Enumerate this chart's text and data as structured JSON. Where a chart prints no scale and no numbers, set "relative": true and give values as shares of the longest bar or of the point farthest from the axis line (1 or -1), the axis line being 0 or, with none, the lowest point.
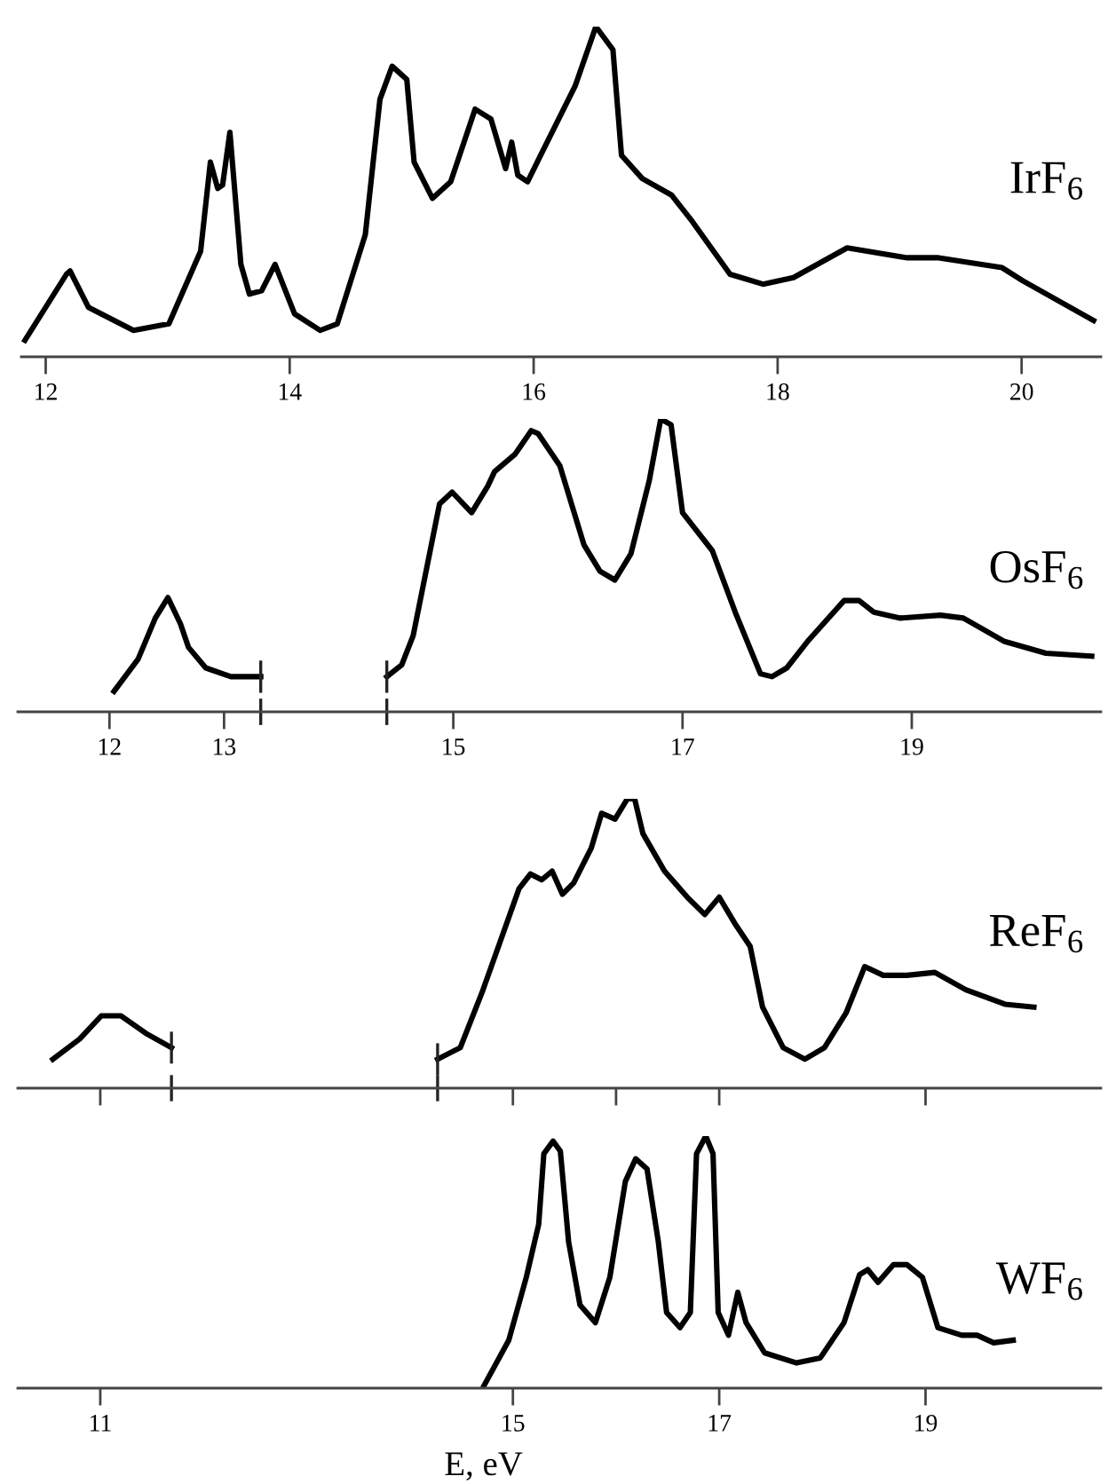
{
  "chart_data": [
    {
      "type": "line",
      "title": "IrF$_{6}$",
      "relative": true,
      "xlim": [
        11.8,
        20.65
      ],
      "xticks": [
        12,
        14,
        16,
        18,
        20
      ],
      "series": [
        {
          "color": "#000000",
          "x": [
            11.83,
            12.17,
            12.2,
            12.35,
            12.72,
            13.01,
            13.27,
            13.35,
            13.41,
            13.45,
            13.51,
            13.6,
            13.67,
            13.77,
            13.88,
            14.04,
            14.25,
            14.39,
            14.62,
            14.74,
            14.84,
            14.96,
            15.02,
            15.17,
            15.32,
            15.52,
            15.65,
            15.77,
            15.82,
            15.87,
            15.95,
            16.07,
            16.34,
            16.51,
            16.65,
            16.72,
            16.89,
            17.13,
            17.3,
            17.61,
            17.88,
            18.13,
            18.57,
            19.06,
            19.32,
            19.84,
            20.01,
            20.59
          ],
          "values": [
            0.05,
            0.25,
            0.26,
            0.15,
            0.08,
            0.1,
            0.32,
            0.59,
            0.51,
            0.52,
            0.68,
            0.28,
            0.19,
            0.2,
            0.28,
            0.13,
            0.08,
            0.1,
            0.37,
            0.78,
            0.88,
            0.84,
            0.59,
            0.48,
            0.53,
            0.75,
            0.72,
            0.57,
            0.65,
            0.55,
            0.53,
            0.62,
            0.82,
            1.0,
            0.93,
            0.61,
            0.54,
            0.49,
            0.41,
            0.25,
            0.22,
            0.24,
            0.33,
            0.3,
            0.3,
            0.27,
            0.23,
            0.11
          ]
        }
      ]
    },
    {
      "type": "line",
      "title": "OsF$_{6}$",
      "relative": true,
      "xlim": [
        11.2,
        20.65
      ],
      "xticks": [
        12,
        13,
        15,
        17,
        19
      ],
      "series": [
        {
          "color": "#000000",
          "x": [
            12.04,
            12.25,
            12.4,
            12.51,
            12.62,
            12.69,
            12.84,
            13.06,
            13.32,
            13.87,
            14.42,
            14.55,
            14.65,
            14.88,
            14.99,
            15.16,
            15.3,
            15.36,
            15.54,
            15.68,
            15.74,
            15.93,
            16.14,
            16.28,
            16.41,
            16.55,
            16.71,
            16.81,
            16.9,
            17.0,
            17.26,
            17.46,
            17.68,
            17.78,
            17.91,
            18.09,
            18.41,
            18.54,
            18.67,
            18.9,
            19.25,
            19.45,
            19.81,
            20.17,
            20.57
          ],
          "values": [
            0.07,
            0.18,
            0.32,
            0.39,
            0.3,
            0.22,
            0.15,
            0.12,
            0.12,
            null,
            0.12,
            0.16,
            0.26,
            0.71,
            0.75,
            0.68,
            0.77,
            0.82,
            0.88,
            0.96,
            0.95,
            0.84,
            0.57,
            0.48,
            0.45,
            0.54,
            0.79,
            1.0,
            0.98,
            0.68,
            0.55,
            0.34,
            0.13,
            0.12,
            0.15,
            0.24,
            0.38,
            0.38,
            0.34,
            0.32,
            0.33,
            0.32,
            0.24,
            0.2,
            0.19
          ]
        }
      ]
    },
    {
      "type": "line",
      "title": "ReF$_{6}$",
      "relative": true,
      "tick_labels": false,
      "xlim": [
        10.2,
        20.7
      ],
      "xticks": [
        11,
        15,
        16,
        17,
        19
      ],
      "series": [
        {
          "color": "#000000",
          "x": [
            10.54,
            10.8,
            11.01,
            11.2,
            11.44,
            11.69,
            12.98,
            14.27,
            14.49,
            14.7,
            14.94,
            15.06,
            15.17,
            15.28,
            15.38,
            15.48,
            15.59,
            15.76,
            15.86,
            15.99,
            16.11,
            16.18,
            16.26,
            16.47,
            16.69,
            16.86,
            17.0,
            17.15,
            17.3,
            17.42,
            17.62,
            17.83,
            18.02,
            18.23,
            18.41,
            18.59,
            18.82,
            19.09,
            19.39,
            19.77,
            20.05
          ],
          "values": [
            0.1,
            0.17,
            0.25,
            0.25,
            0.19,
            0.14,
            null,
            0.1,
            0.14,
            0.33,
            0.57,
            0.69,
            0.74,
            0.72,
            0.75,
            0.67,
            0.71,
            0.83,
            0.95,
            0.93,
            1.0,
            1.0,
            0.88,
            0.75,
            0.66,
            0.6,
            0.66,
            0.57,
            0.49,
            0.28,
            0.14,
            0.1,
            0.14,
            0.26,
            0.42,
            0.39,
            0.39,
            0.4,
            0.34,
            0.29,
            0.28
          ]
        }
      ]
    },
    {
      "type": "line",
      "title": "WF$_{6}$",
      "xlabel": "E, eV",
      "relative": true,
      "xlim": [
        10.2,
        20.7
      ],
      "xticks": [
        11,
        15,
        17,
        19
      ],
      "series": [
        {
          "color": "#000000",
          "x": [
            14.72,
            14.96,
            15.13,
            15.25,
            15.3,
            15.39,
            15.46,
            15.54,
            15.65,
            15.8,
            15.94,
            16.09,
            16.19,
            16.3,
            16.41,
            16.49,
            16.62,
            16.72,
            16.78,
            16.87,
            16.94,
            16.99,
            17.09,
            17.18,
            17.26,
            17.44,
            17.75,
            17.98,
            18.21,
            18.36,
            18.44,
            18.54,
            18.69,
            18.82,
            18.97,
            19.12,
            19.35,
            19.5,
            19.66,
            19.85
          ],
          "values": [
            0.01,
            0.19,
            0.44,
            0.65,
            0.93,
            0.98,
            0.94,
            0.58,
            0.33,
            0.26,
            0.44,
            0.82,
            0.91,
            0.87,
            0.58,
            0.3,
            0.24,
            0.3,
            0.93,
            1.0,
            0.93,
            0.3,
            0.21,
            0.38,
            0.26,
            0.14,
            0.1,
            0.12,
            0.26,
            0.45,
            0.47,
            0.42,
            0.49,
            0.49,
            0.44,
            0.24,
            0.21,
            0.21,
            0.18,
            0.19
          ]
        }
      ]
    }
  ]
}
